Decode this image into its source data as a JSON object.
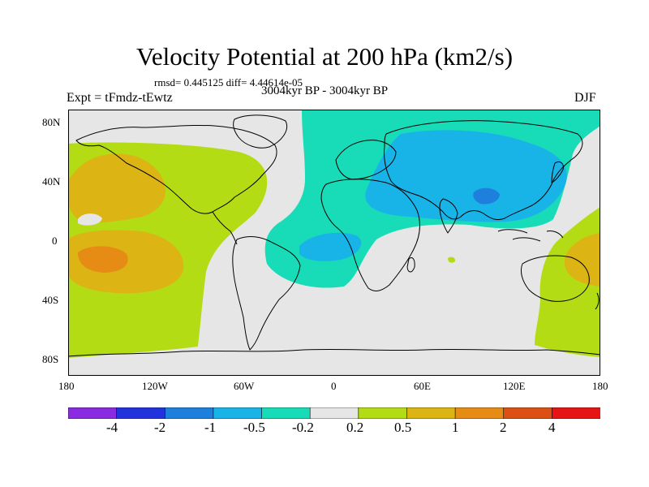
{
  "header": {
    "title": "Velocity Potential at 200 hPa (km2/s)",
    "stats": "rmsd= 0.445125 diff= 4.44614e-05",
    "experiment": "Expt = tFmdz-tEwtz",
    "period": "3004kyr BP - 3004kyr BP",
    "season": "DJF"
  },
  "axes": {
    "lat_labels": [
      "80N",
      "40N",
      "0",
      "40S",
      "80S"
    ],
    "lon_labels": [
      "180",
      "120W",
      "60W",
      "0",
      "60E",
      "120E",
      "180"
    ]
  },
  "colorbar": {
    "colors": [
      "#8a2be2",
      "#2233dd",
      "#1e7fdd",
      "#18b4e8",
      "#18dcb8",
      "#e6e6e6",
      "#b4dc14",
      "#dcb414",
      "#e68c14",
      "#dc5014",
      "#e61414"
    ],
    "labels": [
      "-4",
      "-2",
      "-1",
      "-0.5",
      "-0.2",
      "0.2",
      "0.5",
      "1",
      "2",
      "4"
    ]
  },
  "map_colors": {
    "background": "#e6e6e6",
    "coast": "#000000"
  }
}
